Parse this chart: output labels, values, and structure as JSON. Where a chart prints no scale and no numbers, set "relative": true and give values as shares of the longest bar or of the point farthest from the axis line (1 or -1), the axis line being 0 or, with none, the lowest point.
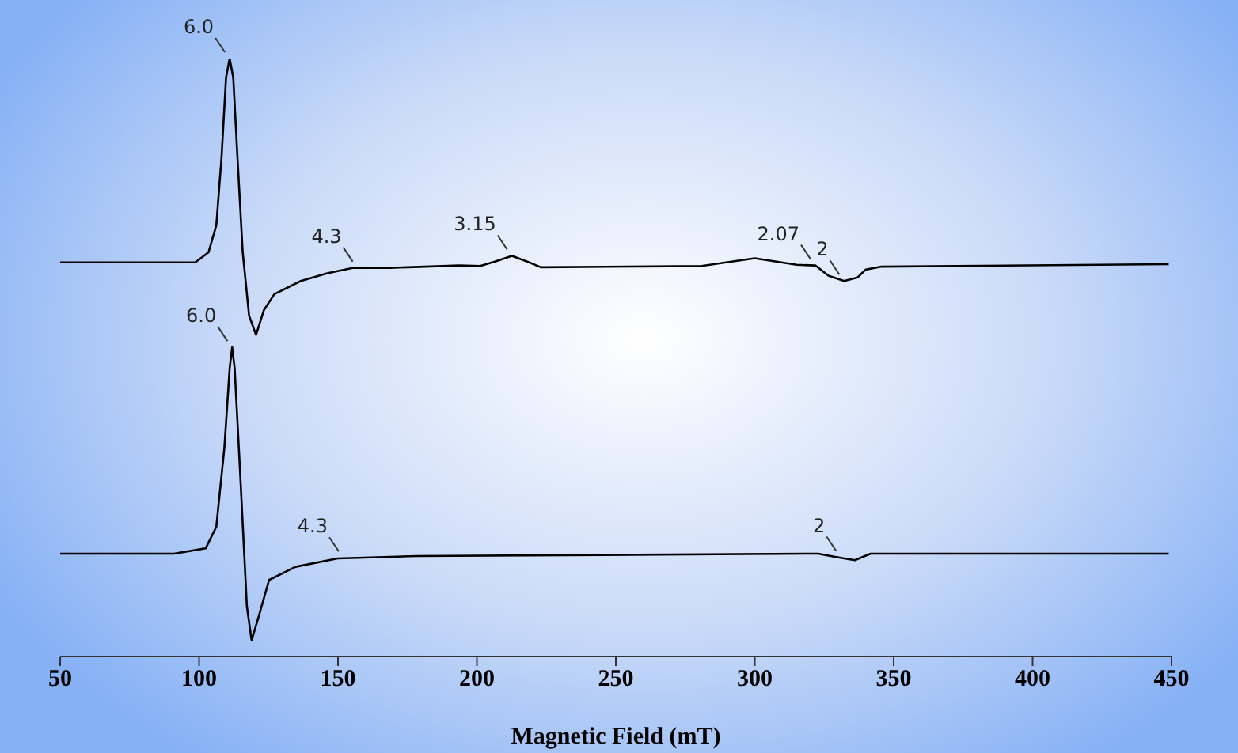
{
  "chart_data": {
    "type": "line",
    "xlabel": "Magnetic Field (mT)",
    "relative": true,
    "marker": "none",
    "xlim": [
      50,
      450
    ],
    "xticks": [
      50,
      100,
      150,
      200,
      250,
      300,
      350,
      400,
      450
    ],
    "series": [
      {
        "color": "#000000",
        "x": [
          50,
          98.6,
          103.4,
          106.2,
          108.1,
          109.7,
          111.0,
          112.3,
          113.8,
          115.7,
          118.0,
          120.5,
          123.3,
          127.1,
          136.6,
          146.1,
          155.6,
          168.9,
          193.6,
          201.2,
          206.9,
          212.6,
          218.3,
          223.0,
          280.9,
          300.0,
          315.1,
          321.8,
          326.5,
          332.2,
          337.0,
          339.9,
          345.6,
          449.0
        ],
        "values": [
          0.659,
          0.659,
          0.676,
          0.721,
          0.836,
          0.968,
          1.0,
          0.968,
          0.836,
          0.676,
          0.57,
          0.538,
          0.579,
          0.606,
          0.628,
          0.641,
          0.65,
          0.65,
          0.654,
          0.653,
          0.661,
          0.67,
          0.66,
          0.651,
          0.653,
          0.666,
          0.655,
          0.654,
          0.637,
          0.628,
          0.634,
          0.647,
          0.652,
          0.656
        ]
      },
      {
        "color": "#000000",
        "x": [
          50,
          91.0,
          102.4,
          106.2,
          109.1,
          111.0,
          111.9,
          112.8,
          114.8,
          117.2,
          118.9,
          121.4,
          125.2,
          134.7,
          149.9,
          178.4,
          322.8,
          328.5,
          336.0,
          341.7,
          449.0
        ],
        "values": [
          0.172,
          0.172,
          0.181,
          0.217,
          0.349,
          0.482,
          0.517,
          0.482,
          0.305,
          0.084,
          0.027,
          0.066,
          0.128,
          0.15,
          0.164,
          0.168,
          0.172,
          0.167,
          0.161,
          0.172,
          0.172
        ]
      }
    ],
    "annotations": [
      {
        "text": "6.0",
        "x": 111.0,
        "y": 1.0
      },
      {
        "text": "4.3",
        "x": 157,
        "y": 0.65
      },
      {
        "text": "3.15",
        "x": 212.6,
        "y": 0.67
      },
      {
        "text": "2.07",
        "x": 321.8,
        "y": 0.654
      },
      {
        "text": "2",
        "x": 332.2,
        "y": 0.628
      },
      {
        "text": "6.0",
        "x": 111.9,
        "y": 0.517
      },
      {
        "text": "4.3",
        "x": 152,
        "y": 0.165
      },
      {
        "text": "2",
        "x": 331,
        "y": 0.166
      }
    ]
  }
}
